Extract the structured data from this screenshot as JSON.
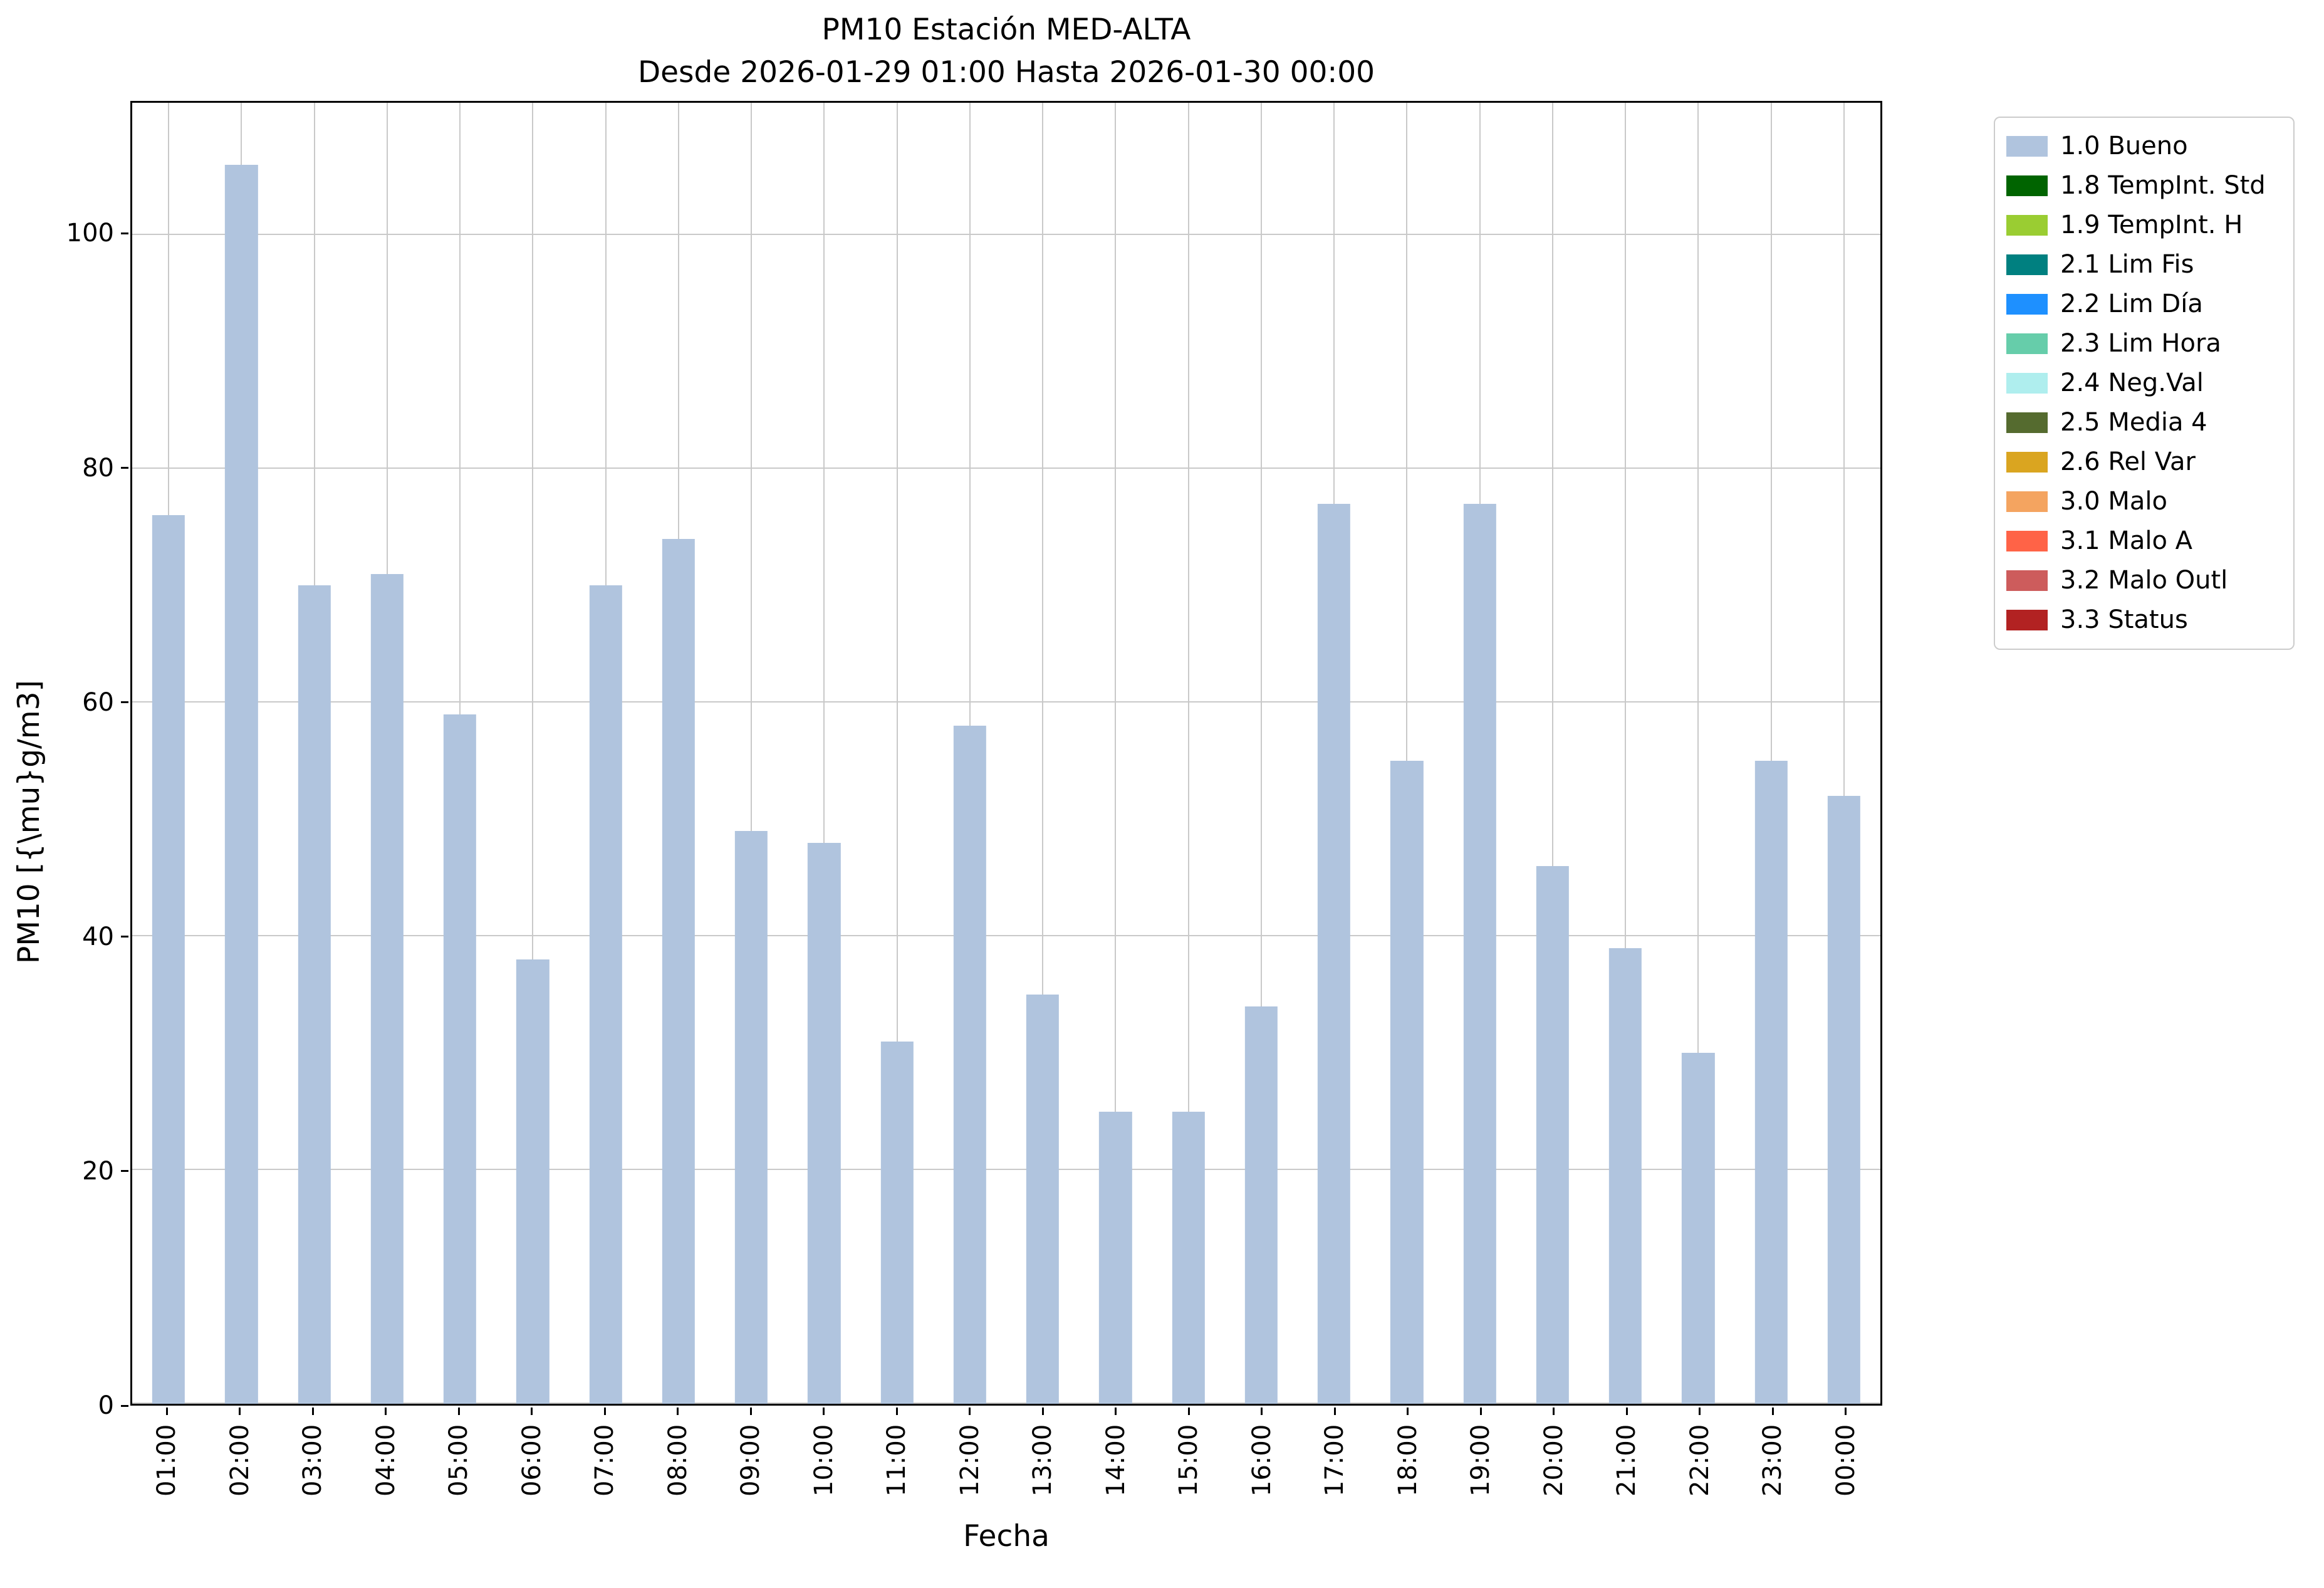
{
  "chart_data": {
    "type": "bar",
    "title": "PM10 Estación MED-ALTA",
    "subtitle": "Desde 2026-01-29 01:00 Hasta 2026-01-30 00:00",
    "xlabel": "Fecha",
    "ylabel": "PM10 [{\\mu}g/m3]",
    "categories": [
      "01:00",
      "02:00",
      "03:00",
      "04:00",
      "05:00",
      "06:00",
      "07:00",
      "08:00",
      "09:00",
      "10:00",
      "11:00",
      "12:00",
      "13:00",
      "14:00",
      "15:00",
      "16:00",
      "17:00",
      "18:00",
      "19:00",
      "20:00",
      "21:00",
      "22:00",
      "23:00",
      "00:00"
    ],
    "values": [
      76,
      106,
      70,
      71,
      59,
      38,
      70,
      74,
      49,
      48,
      31,
      58,
      35,
      25,
      25,
      34,
      77,
      55,
      77,
      46,
      39,
      30,
      55,
      52
    ],
    "bar_color": "#b0c4de",
    "ylim": [
      0,
      111.3
    ],
    "yticks": [
      0,
      20,
      40,
      60,
      80,
      100
    ],
    "grid": true,
    "legend_position": "outside-upper-right",
    "legend": [
      {
        "label": "1.0 Bueno",
        "color": "#b0c4de"
      },
      {
        "label": "1.8 TempInt. Std",
        "color": "#006400"
      },
      {
        "label": "1.9 TempInt. H",
        "color": "#9acd32"
      },
      {
        "label": "2.1 Lim Fis",
        "color": "#008080"
      },
      {
        "label": "2.2 Lim Día",
        "color": "#1e90ff"
      },
      {
        "label": "2.3 Lim Hora",
        "color": "#66cdaa"
      },
      {
        "label": "2.4 Neg.Val",
        "color": "#afeeee"
      },
      {
        "label": "2.5 Media 4",
        "color": "#556b2f"
      },
      {
        "label": "2.6 Rel Var",
        "color": "#daa520"
      },
      {
        "label": "3.0 Malo",
        "color": "#f4a460"
      },
      {
        "label": "3.1 Malo A",
        "color": "#ff6347"
      },
      {
        "label": "3.2 Malo Outl",
        "color": "#cd5c5c"
      },
      {
        "label": "3.3 Status",
        "color": "#b22222"
      }
    ]
  }
}
